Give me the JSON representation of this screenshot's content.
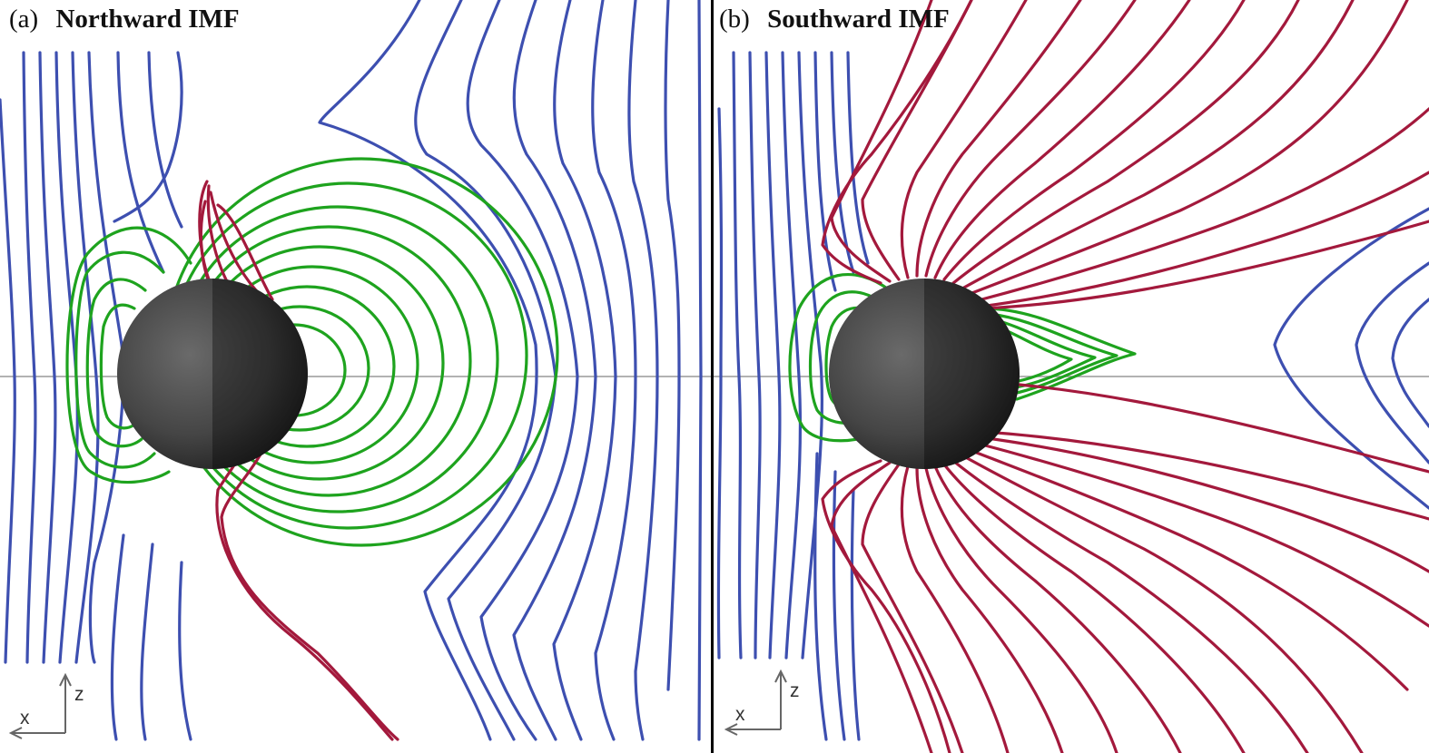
{
  "colors": {
    "open_field_line": "#3d4fb0",
    "closed_field_line": "#1ea31e",
    "half_open_field_line": "#a3193c",
    "moon": "#4a4a4a",
    "equator_line": "#999999",
    "divider": "#000000"
  },
  "panels": [
    {
      "id": "a",
      "label": "(a)",
      "title": "Northward  IMF",
      "axes": {
        "x": "x",
        "z": "z"
      }
    },
    {
      "id": "b",
      "label": "(b)",
      "title": "Southward  IMF",
      "axes": {
        "x": "x",
        "z": "z"
      }
    }
  ]
}
